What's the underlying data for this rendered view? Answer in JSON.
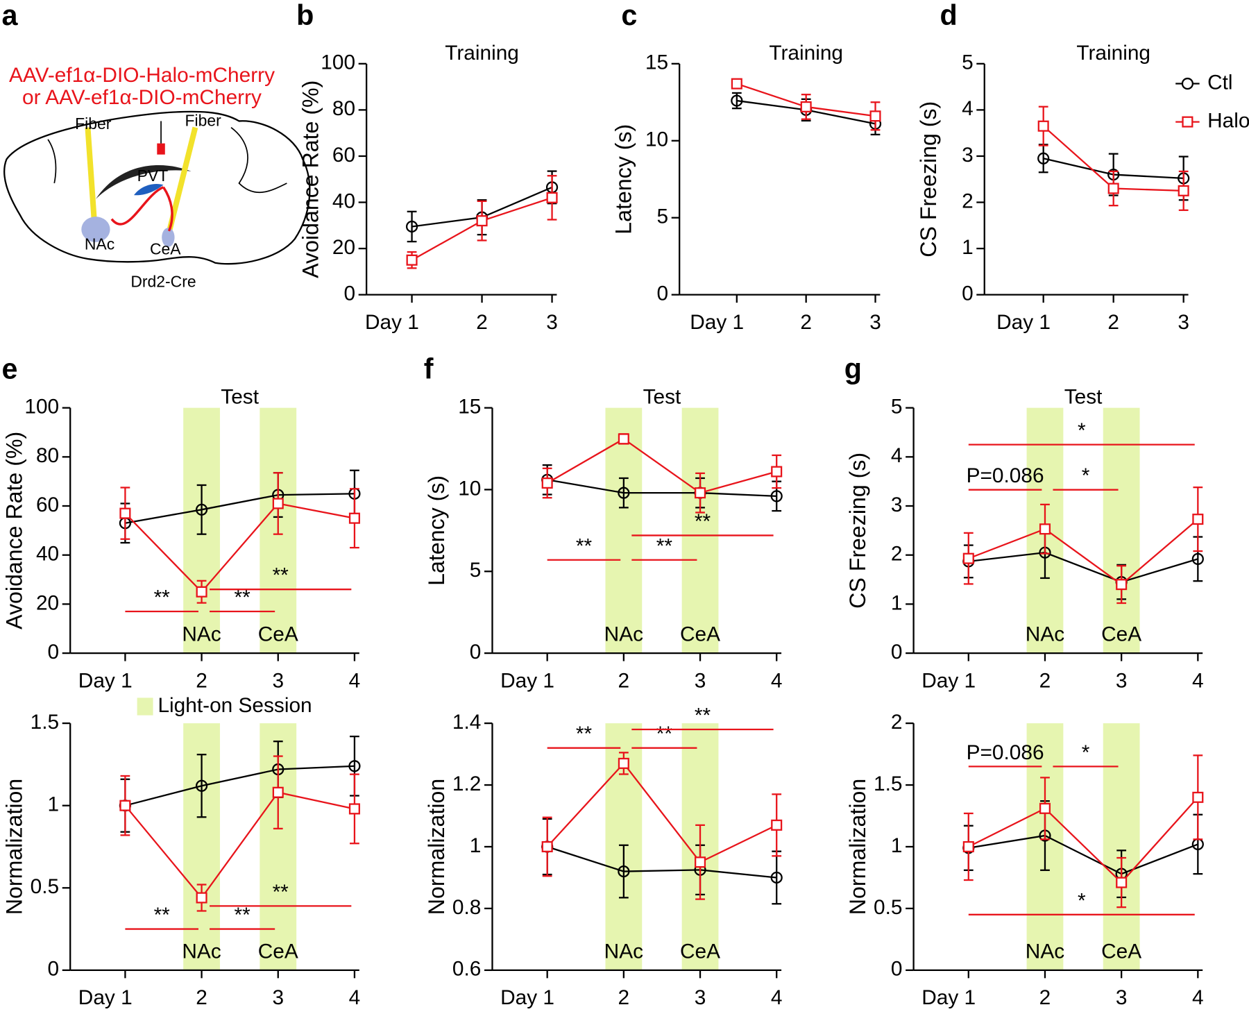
{
  "diagram": {
    "panel": "a",
    "title_lines": [
      "AAV-ef1α-DIO-Halo-mCherry",
      "or AAV-ef1α-DIO-mCherry"
    ],
    "fibers": [
      "Fiber",
      "Fiber"
    ],
    "regions": [
      "PVT",
      "NAc",
      "CeA"
    ],
    "mouse_line": "Drd2-Cre"
  },
  "chart_data": [
    {
      "type": "line",
      "panel": "b",
      "title": "Training",
      "ylabel": "Avoidance Rate (%)",
      "categories": [
        "Day 1",
        "2",
        "3"
      ],
      "ylim": [
        0,
        100
      ],
      "yticks": [
        0,
        20,
        40,
        60,
        80,
        100
      ],
      "series": [
        {
          "color": "#000000",
          "marker": "circle",
          "values": [
            29.5,
            33.5,
            46.5
          ],
          "errors": [
            6.5,
            7.5,
            7
          ]
        },
        {
          "color": "#e8141b",
          "marker": "square",
          "values": [
            15,
            32,
            42
          ],
          "errors": [
            3.5,
            8.5,
            9.5
          ]
        }
      ]
    },
    {
      "type": "line",
      "panel": "c",
      "title": "Training",
      "ylabel": "Latency (s)",
      "categories": [
        "Day 1",
        "2",
        "3"
      ],
      "ylim": [
        0,
        15
      ],
      "yticks": [
        0,
        5,
        10,
        15
      ],
      "series": [
        {
          "color": "#000000",
          "marker": "circle",
          "values": [
            12.6,
            12.0,
            11.1
          ],
          "errors": [
            0.5,
            0.7,
            0.7
          ]
        },
        {
          "color": "#e8141b",
          "marker": "square",
          "values": [
            13.7,
            12.2,
            11.6
          ],
          "errors": [
            0.2,
            0.8,
            0.9
          ]
        }
      ]
    },
    {
      "type": "line",
      "panel": "d",
      "title": "Training",
      "ylabel": "CS Freezing (s)",
      "categories": [
        "Day 1",
        "2",
        "3"
      ],
      "ylim": [
        0,
        5
      ],
      "yticks": [
        0,
        1,
        2,
        3,
        4,
        5
      ],
      "legend": "upper right",
      "series": [
        {
          "name": "Ctl",
          "color": "#000000",
          "marker": "circle",
          "values": [
            2.95,
            2.6,
            2.52
          ],
          "errors": [
            0.3,
            0.45,
            0.47
          ]
        },
        {
          "name": "Halo",
          "color": "#e8141b",
          "marker": "square",
          "values": [
            3.65,
            2.3,
            2.25
          ],
          "errors": [
            0.42,
            0.37,
            0.42
          ]
        }
      ]
    },
    {
      "type": "line",
      "panel": "e",
      "title": "Test",
      "ylabel": "Avoidance Rate (%)",
      "categories": [
        "Day 1",
        "2",
        "3",
        "4"
      ],
      "ylim": [
        0,
        100
      ],
      "yticks": [
        0,
        20,
        40,
        60,
        80,
        100
      ],
      "bands": [
        {
          "category": "2",
          "label": "NAc"
        },
        {
          "category": "3",
          "label": "CeA"
        }
      ],
      "band_color": "#e6f5b0",
      "band_legend": "Light-on Session",
      "series": [
        {
          "color": "#000000",
          "marker": "circle",
          "values": [
            53,
            58.5,
            64.5,
            65
          ],
          "errors": [
            8,
            10,
            9,
            9.5
          ]
        },
        {
          "color": "#e8141b",
          "marker": "square",
          "values": [
            57,
            25,
            61,
            55
          ],
          "errors": [
            10.5,
            4.5,
            12.5,
            12
          ]
        }
      ],
      "annotations": [
        {
          "text": "**",
          "from": 0,
          "to": 1,
          "y": 17
        },
        {
          "text": "**",
          "from": 1,
          "to": 2,
          "y": 17
        },
        {
          "text": "**",
          "from": 1,
          "to": 3,
          "y": 26
        }
      ]
    },
    {
      "type": "line",
      "ylabel": "Normalization",
      "categories": [
        "Day 1",
        "2",
        "3",
        "4"
      ],
      "ylim": [
        0,
        1.5
      ],
      "yticks": [
        0,
        0.5,
        1,
        1.5
      ],
      "bands": [
        {
          "category": "2",
          "label": "NAc"
        },
        {
          "category": "3",
          "label": "CeA"
        }
      ],
      "band_color": "#e6f5b0",
      "series": [
        {
          "color": "#000000",
          "marker": "circle",
          "values": [
            1.0,
            1.12,
            1.22,
            1.24
          ],
          "errors": [
            0.16,
            0.19,
            0.17,
            0.18
          ]
        },
        {
          "color": "#e8141b",
          "marker": "square",
          "values": [
            1.0,
            0.44,
            1.08,
            0.98
          ],
          "errors": [
            0.18,
            0.08,
            0.22,
            0.21
          ]
        }
      ],
      "annotations": [
        {
          "text": "**",
          "from": 0,
          "to": 1,
          "y": 0.25
        },
        {
          "text": "**",
          "from": 1,
          "to": 2,
          "y": 0.25
        },
        {
          "text": "**",
          "from": 1,
          "to": 3,
          "y": 0.39
        }
      ]
    },
    {
      "type": "line",
      "panel": "f",
      "title": "Test",
      "ylabel": "Latency (s)",
      "categories": [
        "Day 1",
        "2",
        "3",
        "4"
      ],
      "ylim": [
        0,
        15
      ],
      "yticks": [
        0,
        5,
        10,
        15
      ],
      "bands": [
        {
          "category": "2",
          "label": "NAc"
        },
        {
          "category": "3",
          "label": "CeA"
        }
      ],
      "band_color": "#e6f5b0",
      "series": [
        {
          "color": "#000000",
          "marker": "circle",
          "values": [
            10.6,
            9.8,
            9.8,
            9.6
          ],
          "errors": [
            0.9,
            0.9,
            0.9,
            0.9
          ]
        },
        {
          "color": "#e8141b",
          "marker": "square",
          "values": [
            10.4,
            13.1,
            9.8,
            11.1
          ],
          "errors": [
            0.9,
            0.3,
            1.2,
            1.0
          ]
        }
      ],
      "annotations": [
        {
          "text": "**",
          "from": 0,
          "to": 1,
          "y": 5.7
        },
        {
          "text": "**",
          "from": 1,
          "to": 2,
          "y": 5.7
        },
        {
          "text": "**",
          "from": 1,
          "to": 3,
          "y": 7.2
        }
      ]
    },
    {
      "type": "line",
      "ylabel": "Normalization",
      "categories": [
        "Day 1",
        "2",
        "3",
        "4"
      ],
      "ylim": [
        0.6,
        1.4
      ],
      "yticks": [
        0.6,
        0.8,
        1,
        1.2,
        1.4
      ],
      "bands": [
        {
          "category": "2",
          "label": "NAc"
        },
        {
          "category": "3",
          "label": "CeA"
        }
      ],
      "band_color": "#e6f5b0",
      "series": [
        {
          "color": "#000000",
          "marker": "circle",
          "values": [
            1.0,
            0.92,
            0.925,
            0.9
          ],
          "errors": [
            0.09,
            0.085,
            0.08,
            0.085
          ]
        },
        {
          "color": "#e8141b",
          "marker": "square",
          "values": [
            1.0,
            1.27,
            0.95,
            1.07
          ],
          "errors": [
            0.095,
            0.035,
            0.12,
            0.1
          ]
        }
      ],
      "annotations": [
        {
          "text": "**",
          "from": 0,
          "to": 1,
          "y": 1.32
        },
        {
          "text": "**",
          "from": 1,
          "to": 2,
          "y": 1.32
        },
        {
          "text": "**",
          "from": 1,
          "to": 3,
          "y": 1.38
        }
      ]
    },
    {
      "type": "line",
      "panel": "g",
      "title": "Test",
      "ylabel": "CS Freezing (s)",
      "categories": [
        "Day 1",
        "2",
        "3",
        "4"
      ],
      "ylim": [
        0,
        5
      ],
      "yticks": [
        0,
        1,
        2,
        3,
        4,
        5
      ],
      "bands": [
        {
          "category": "2",
          "label": "NAc"
        },
        {
          "category": "3",
          "label": "CeA"
        }
      ],
      "band_color": "#e6f5b0",
      "series": [
        {
          "color": "#000000",
          "marker": "circle",
          "values": [
            1.87,
            2.05,
            1.45,
            1.92
          ],
          "errors": [
            0.33,
            0.52,
            0.35,
            0.45
          ]
        },
        {
          "color": "#e8141b",
          "marker": "square",
          "values": [
            1.93,
            2.53,
            1.4,
            2.73
          ],
          "errors": [
            0.52,
            0.5,
            0.38,
            0.65
          ]
        }
      ],
      "annotations": [
        {
          "text": "*",
          "from": 0,
          "to": 3,
          "y": 4.25
        },
        {
          "text": "P=0.086",
          "from": 0,
          "to": 1,
          "y": 3.33
        },
        {
          "text": "*",
          "from": 1,
          "to": 2,
          "y": 3.33
        }
      ]
    },
    {
      "type": "line",
      "ylabel": "Normalization",
      "categories": [
        "Day 1",
        "2",
        "3",
        "4"
      ],
      "ylim": [
        0,
        2
      ],
      "yticks": [
        0,
        0.5,
        1,
        1.5,
        2
      ],
      "bands": [
        {
          "category": "2",
          "label": "NAc"
        },
        {
          "category": "3",
          "label": "CeA"
        }
      ],
      "band_color": "#e6f5b0",
      "series": [
        {
          "color": "#000000",
          "marker": "circle",
          "values": [
            0.99,
            1.09,
            0.78,
            1.02
          ],
          "errors": [
            0.18,
            0.28,
            0.19,
            0.24
          ]
        },
        {
          "color": "#e8141b",
          "marker": "square",
          "values": [
            1.0,
            1.31,
            0.71,
            1.4
          ],
          "errors": [
            0.27,
            0.25,
            0.2,
            0.34
          ]
        }
      ],
      "annotations": [
        {
          "text": "P=0.086",
          "from": 0,
          "to": 1,
          "y": 1.65
        },
        {
          "text": "*",
          "from": 1,
          "to": 2,
          "y": 1.65
        },
        {
          "text": "*",
          "from": 0,
          "to": 3,
          "y": 0.45
        }
      ]
    }
  ]
}
